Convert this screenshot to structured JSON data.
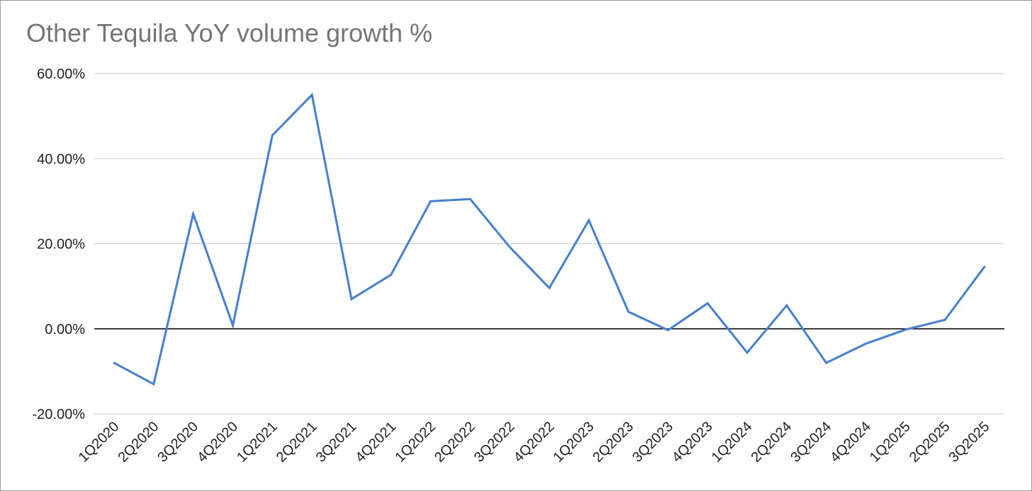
{
  "chart_data": {
    "type": "line",
    "title": "Other Tequila YoY volume growth %",
    "xlabel": "",
    "ylabel": "",
    "ylim": [
      -20,
      60
    ],
    "yticks": [
      60,
      40,
      20,
      0,
      -20
    ],
    "ytick_labels": [
      "60.00%",
      "40.00%",
      "20.00%",
      "0.00%",
      "-20.00%"
    ],
    "grid": true,
    "legend": "none",
    "colors": {
      "series": "#3f7fe0",
      "grid": "#c8c8c8",
      "zero_line": "#000000"
    },
    "categories": [
      "1Q2020",
      "2Q2020",
      "3Q2020",
      "4Q2020",
      "1Q2021",
      "2Q2021",
      "3Q2021",
      "4Q2021",
      "1Q2022",
      "2Q2022",
      "3Q2022",
      "4Q2022",
      "1Q2023",
      "2Q2023",
      "3Q2023",
      "4Q2023",
      "1Q2024",
      "2Q2024",
      "3Q2024",
      "4Q2024",
      "1Q2025",
      "2Q2025",
      "3Q2025"
    ],
    "series": [
      {
        "values": [
          -8.0,
          -13.0,
          27.0,
          0.8,
          45.5,
          55.0,
          7.0,
          12.7,
          30.0,
          30.5,
          19.2,
          9.6,
          25.5,
          4.0,
          -0.3,
          6.0,
          -5.6,
          5.5,
          -8.0,
          -3.5,
          -0.2,
          2.1,
          14.6
        ]
      }
    ]
  }
}
